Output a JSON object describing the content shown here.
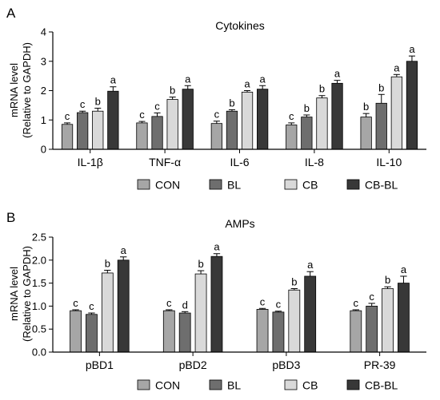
{
  "colors": {
    "CON": "#a6a6a6",
    "BL": "#6e6e6e",
    "CB": "#d9d9d9",
    "CB-BL": "#383838",
    "axis": "#000000"
  },
  "chart_data": [
    {
      "type": "bar",
      "panel_label": "A",
      "title": "Cytokines",
      "ylabel_line1": "mRNA level",
      "ylabel_line2": "(Relative to GAPDH)",
      "ylim": [
        0,
        4
      ],
      "yticks": [
        "0",
        "1",
        "2",
        "3",
        "4"
      ],
      "ytick_values": [
        0,
        1,
        2,
        3,
        4
      ],
      "categories": [
        "IL-1β",
        "TNF-α",
        "IL-6",
        "IL-8",
        "IL-10"
      ],
      "series": [
        {
          "name": "CON",
          "values": [
            0.85,
            0.9,
            0.88,
            0.83,
            1.1
          ],
          "errors": [
            0.05,
            0.05,
            0.08,
            0.07,
            0.12
          ],
          "letters": [
            "c",
            "c",
            "c",
            "c",
            "b"
          ]
        },
        {
          "name": "BL",
          "values": [
            1.25,
            1.12,
            1.3,
            1.1,
            1.57
          ],
          "errors": [
            0.05,
            0.12,
            0.05,
            0.07,
            0.3
          ],
          "letters": [
            "c",
            "c",
            "b",
            "b",
            "b"
          ]
        },
        {
          "name": "CB",
          "values": [
            1.3,
            1.7,
            1.95,
            1.75,
            2.47
          ],
          "errors": [
            0.1,
            0.08,
            0.05,
            0.08,
            0.08
          ],
          "letters": [
            "b",
            "b",
            "a",
            "b",
            "a"
          ]
        },
        {
          "name": "CB-BL",
          "values": [
            1.98,
            2.05,
            2.05,
            2.25,
            3.0
          ],
          "errors": [
            0.15,
            0.12,
            0.12,
            0.1,
            0.18
          ],
          "letters": [
            "a",
            "a",
            "a",
            "a",
            "a"
          ]
        }
      ],
      "legend": [
        "CON",
        "BL",
        "CB",
        "CB-BL"
      ]
    },
    {
      "type": "bar",
      "panel_label": "B",
      "title": "AMPs",
      "ylabel_line1": "mRNA level",
      "ylabel_line2": "(Relative to GAPDH)",
      "ylim": [
        0,
        2.5
      ],
      "yticks": [
        "0.0",
        "0.5",
        "1.0",
        "1.5",
        "2.0",
        "2.5"
      ],
      "ytick_values": [
        0,
        0.5,
        1.0,
        1.5,
        2.0,
        2.5
      ],
      "categories": [
        "pBD1",
        "pBD2",
        "pBD3",
        "PR-39"
      ],
      "series": [
        {
          "name": "CON",
          "values": [
            0.9,
            0.9,
            0.93,
            0.9
          ],
          "errors": [
            0.02,
            0.02,
            0.02,
            0.02
          ],
          "letters": [
            "c",
            "c",
            "c",
            "c"
          ]
        },
        {
          "name": "BL",
          "values": [
            0.82,
            0.85,
            0.87,
            1.0
          ],
          "errors": [
            0.03,
            0.03,
            0.02,
            0.06
          ],
          "letters": [
            "c",
            "d",
            "c",
            "c"
          ]
        },
        {
          "name": "CB",
          "values": [
            1.72,
            1.7,
            1.35,
            1.38
          ],
          "errors": [
            0.06,
            0.07,
            0.03,
            0.04
          ],
          "letters": [
            "b",
            "b",
            "b",
            "b"
          ]
        },
        {
          "name": "CB-BL",
          "values": [
            2.0,
            2.08,
            1.65,
            1.5
          ],
          "errors": [
            0.07,
            0.06,
            0.1,
            0.15
          ],
          "letters": [
            "a",
            "a",
            "a",
            "a"
          ]
        }
      ],
      "legend": [
        "CON",
        "BL",
        "CB",
        "CB-BL"
      ]
    }
  ]
}
